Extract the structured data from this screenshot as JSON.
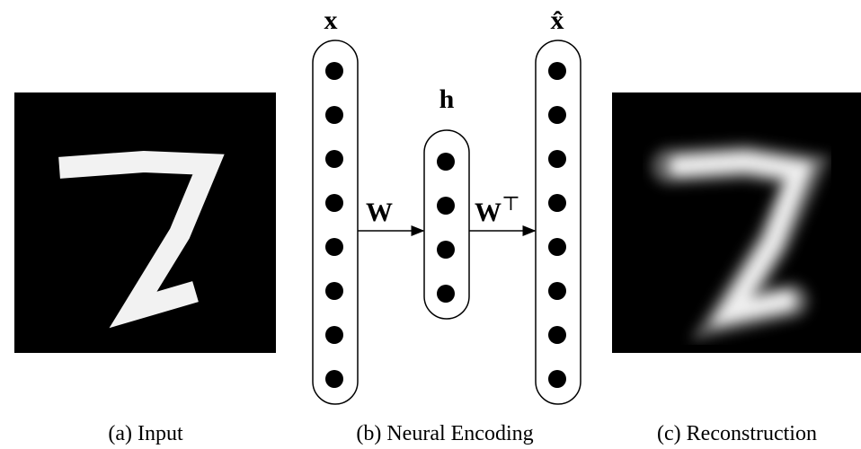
{
  "panels": [
    {
      "caption": "(a) Input"
    },
    {
      "caption": "(b) Neural Encoding"
    },
    {
      "caption": "(c) Reconstruction"
    }
  ],
  "network": {
    "layers": [
      {
        "label": "x"
      },
      {
        "label": "h"
      },
      {
        "label": "x̂"
      }
    ],
    "weights": [
      {
        "label": "W"
      },
      {
        "label": "W",
        "superscript": "⊤"
      }
    ]
  }
}
